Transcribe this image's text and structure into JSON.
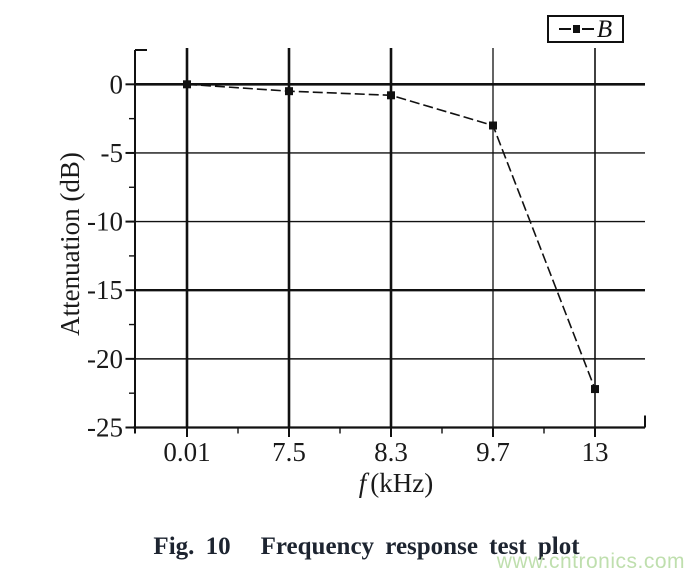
{
  "figure": {
    "caption_prefix": "Fig. 10",
    "caption_text": "Frequency response test plot"
  },
  "watermark": {
    "text": "www.cntronics.com",
    "color": "#bfdfae"
  },
  "legend": {
    "series_label": "B"
  },
  "axes": {
    "ylabel": "Attenuation (dB)",
    "xlabel_symbol": "f",
    "xlabel_unit": "(kHz)"
  },
  "chart_data": {
    "type": "line",
    "title": "",
    "categories": [
      "0.01",
      "7.5",
      "8.3",
      "9.7",
      "13"
    ],
    "series": [
      {
        "name": "B",
        "values": [
          0,
          -0.5,
          -0.8,
          -3.0,
          -22.2
        ]
      }
    ],
    "xlabel": "f (kHz)",
    "ylabel": "Attenuation (dB)",
    "y_ticks": [
      0,
      -5,
      -10,
      -15,
      -20,
      -25
    ],
    "ylim": [
      -25,
      2.5
    ],
    "grid": true,
    "legend_position": "top-right",
    "line_style": "dashed",
    "marker": "filled-square",
    "colors": {
      "line": "#111111",
      "text": "#1a1a1a"
    }
  }
}
